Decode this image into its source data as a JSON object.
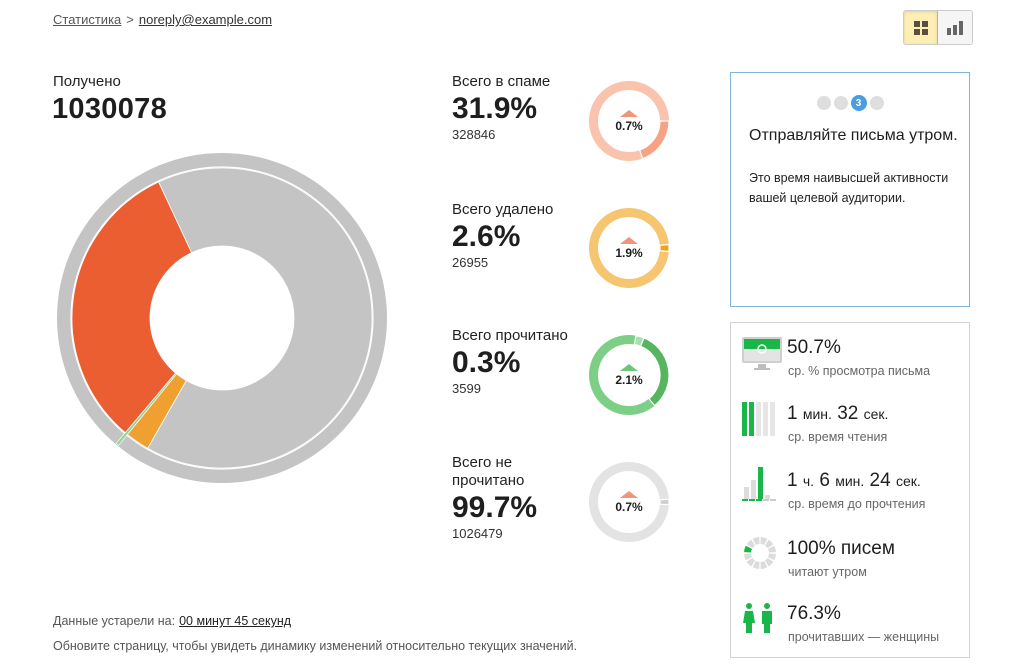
{
  "breadcrumb": {
    "root": "Статистика",
    "separator": ">",
    "current": "noreply@example.com"
  },
  "view_toggle": {
    "options": [
      {
        "name": "grid-view",
        "icon": "grid-icon",
        "active": true
      },
      {
        "name": "chart-view",
        "icon": "bar-chart-icon",
        "active": false
      }
    ]
  },
  "received": {
    "label": "Получено",
    "value": "1030078"
  },
  "metrics": [
    {
      "label": "Всего в спаме",
      "pct": "31.9%",
      "count": "328846",
      "delta": "0.7%",
      "trend": "up",
      "ring_color": "#f9c3ad",
      "accent_color": "#f6a385"
    },
    {
      "label": "Всего удалено",
      "pct": "2.6%",
      "count": "26955",
      "delta": "1.9%",
      "trend": "up",
      "ring_color": "#f6c56f",
      "accent_color": "#eda321"
    },
    {
      "label": "Всего прочитано",
      "pct": "0.3%",
      "count": "3599",
      "delta": "2.1%",
      "trend": "up",
      "ring_color": "#7dcf86",
      "accent_color": "#56b65f"
    },
    {
      "label": "Всего не прочитано",
      "pct": "99.7%",
      "count": "1026479",
      "delta": "0.7%",
      "trend": "up",
      "ring_color": "#e3e3e3",
      "accent_color": "#cfcfcf"
    }
  ],
  "tip": {
    "pager": {
      "total": 4,
      "current": 3,
      "current_label": "3"
    },
    "title": "Отправляйте письма утром.",
    "body": "Это время наивысшей активности вашей целевой аудитории."
  },
  "stats": [
    {
      "icon": "monitor-icon",
      "value": "50.7%",
      "label": "ср. % просмотра письма"
    },
    {
      "icon": "reading-bars-icon",
      "value_parts": {
        "a": "1",
        "a_unit": "мин.",
        "b": "32",
        "b_unit": "сек."
      },
      "label": "ср. время чтения"
    },
    {
      "icon": "histogram-icon",
      "value_parts": {
        "a": "1",
        "a_unit": "ч.",
        "b": "6",
        "b_unit": "мин.",
        "c": "24",
        "c_unit": "сек."
      },
      "label": "ср. время до прочтения"
    },
    {
      "icon": "clock-dial-icon",
      "value": "100% писем",
      "label": "читают утром"
    },
    {
      "icon": "women-icon",
      "value": "76.3%",
      "label": "прочитавших — женщины"
    }
  ],
  "footer": {
    "stale_label": "Данные устарели на:",
    "stale_value": "00 минут 45 секунд",
    "refresh_hint": "Обновите страницу, чтобы увидеть динамику изменений относительно текущих значений."
  },
  "colors": {
    "spam": "#ea5e32",
    "deleted": "#f0a030",
    "read": "#8fd69a",
    "unread": "#c4c4c4",
    "accent_blue": "#4a9de0",
    "green": "#1ab64a"
  },
  "chart_data": {
    "type": "pie",
    "title": "Получено 1030078",
    "categories": [
      "Всего в спаме",
      "Всего удалено",
      "Всего прочитано",
      "Всего не прочитано (остальное)"
    ],
    "values": [
      31.9,
      2.6,
      0.3,
      65.2
    ],
    "counts": [
      328846,
      26955,
      3599
    ],
    "colors": [
      "#ea5e32",
      "#f0a030",
      "#8fd69a",
      "#c4c4c4"
    ],
    "style": "donut"
  }
}
